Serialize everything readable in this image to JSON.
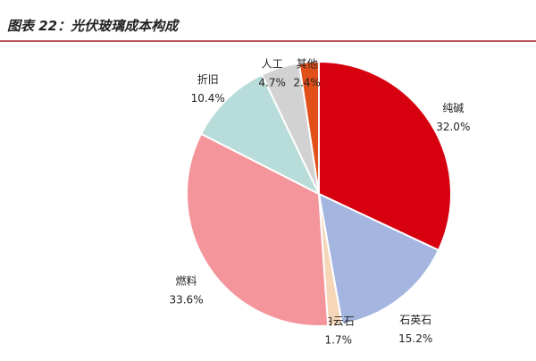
{
  "chart_data": {
    "type": "pie",
    "title": "图表 22：光伏玻璃成本构成",
    "categories": [
      "纯碱",
      "石英石",
      "白云石",
      "燃料",
      "折旧",
      "人工",
      "其他"
    ],
    "values": [
      32.0,
      15.2,
      1.7,
      33.6,
      10.4,
      4.7,
      2.4
    ],
    "value_labels": [
      "32.0%",
      "15.2%",
      "1.7%",
      "33.6%",
      "10.4%",
      "4.7%",
      "2.4%"
    ],
    "colors": [
      "#d7000f",
      "#a4b5e0",
      "#f5d6b8",
      "#f4959b",
      "#b8dcd9",
      "#d2d2d2",
      "#e2501a"
    ]
  }
}
